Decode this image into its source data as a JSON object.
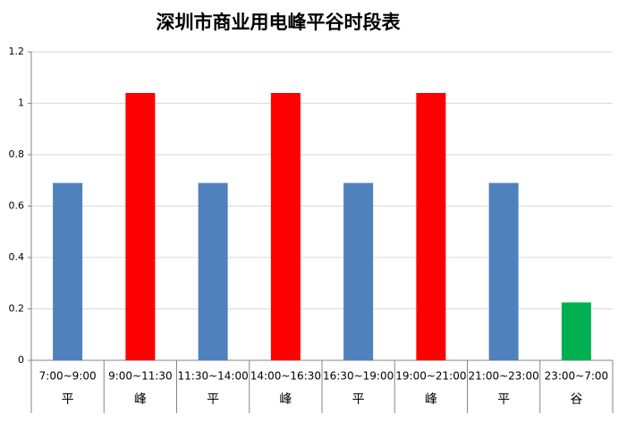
{
  "chart_data": {
    "type": "bar",
    "title": "深圳市商业用电峰平谷时段表",
    "categories": [
      "7:00~9:00",
      "9:00~11:30",
      "11:30~14:00",
      "14:00~16:30",
      "16:30~19:00",
      "19:00~21:00",
      "21:00~23:00",
      "23:00~7:00"
    ],
    "category_groups": [
      "平",
      "峰",
      "平",
      "峰",
      "平",
      "峰",
      "平",
      "谷"
    ],
    "values": [
      0.69,
      1.04,
      0.69,
      1.04,
      0.69,
      1.04,
      0.69,
      0.225
    ],
    "colors": [
      "#4f81bd",
      "#ff0000",
      "#4f81bd",
      "#ff0000",
      "#4f81bd",
      "#ff0000",
      "#4f81bd",
      "#00b050"
    ],
    "ylim": [
      0,
      1.2
    ],
    "yticks": [
      0,
      0.2,
      0.4,
      0.6,
      0.8,
      1,
      1.2
    ],
    "grid": true
  }
}
